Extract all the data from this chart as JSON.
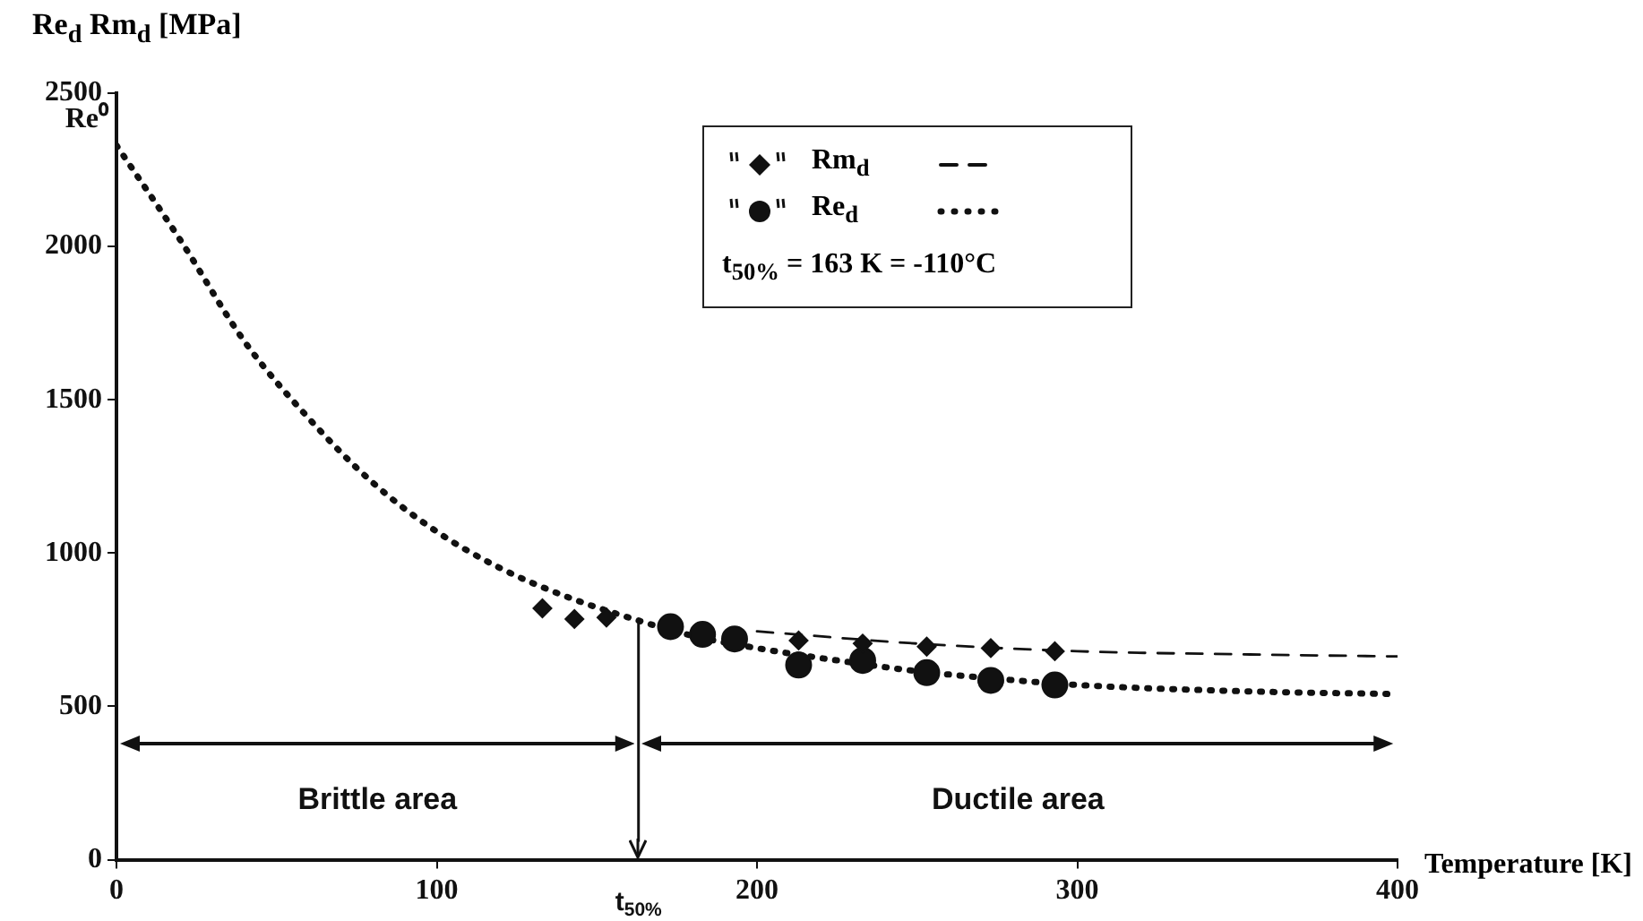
{
  "chart_data": {
    "type": "scatter",
    "ylabel": "Re$_{d}$ Rm$_{d}$ [MPa]",
    "xlabel": "Temperature [K]",
    "xlim": [
      0,
      400
    ],
    "xticks": [
      0,
      100,
      200,
      300,
      400
    ],
    "ylim": [
      0,
      2500
    ],
    "yticks": [
      0,
      500,
      1000,
      1500,
      2000,
      2500
    ],
    "grid": false,
    "legend": "top right",
    "series": [
      {
        "name": "Rm$_{d}$",
        "marker": "diamond",
        "color": "#111111",
        "x": [
          133,
          143,
          153,
          213,
          233,
          253,
          273,
          293
        ],
        "values": [
          820,
          785,
          790,
          715,
          705,
          695,
          690,
          680
        ]
      },
      {
        "name": "Re$_{d}$",
        "marker": "circle",
        "color": "#111111",
        "x": [
          173,
          183,
          193,
          213,
          233,
          253,
          273,
          293
        ],
        "values": [
          760,
          735,
          720,
          635,
          650,
          610,
          585,
          570
        ]
      },
      {
        "type": "line",
        "marker": "none",
        "line_style": "dashed",
        "color": "#111111",
        "x": [
          200,
          250,
          300,
          350,
          400
        ],
        "values": [
          745,
          705,
          680,
          670,
          663
        ]
      },
      {
        "type": "line",
        "marker": "none",
        "line_style": "dotted",
        "color": "#111111",
        "x": [
          0,
          20,
          40,
          60,
          80,
          100,
          120,
          140,
          163,
          180,
          200,
          225,
          250,
          275,
          300,
          350,
          400
        ],
        "values": [
          2330,
          2020,
          1690,
          1440,
          1230,
          1070,
          950,
          860,
          780,
          730,
          690,
          650,
          615,
          590,
          570,
          550,
          540
        ]
      }
    ],
    "ref_lines": [
      {
        "axis": "x",
        "value": 163,
        "label": "t$_{50%}$"
      }
    ],
    "annotations": [
      {
        "text": "Re⁰",
        "x": 0,
        "y": 2330
      },
      "Brittle area",
      "Ductile area",
      "t$_{50%}$ = 163 K = -110°C"
    ]
  }
}
